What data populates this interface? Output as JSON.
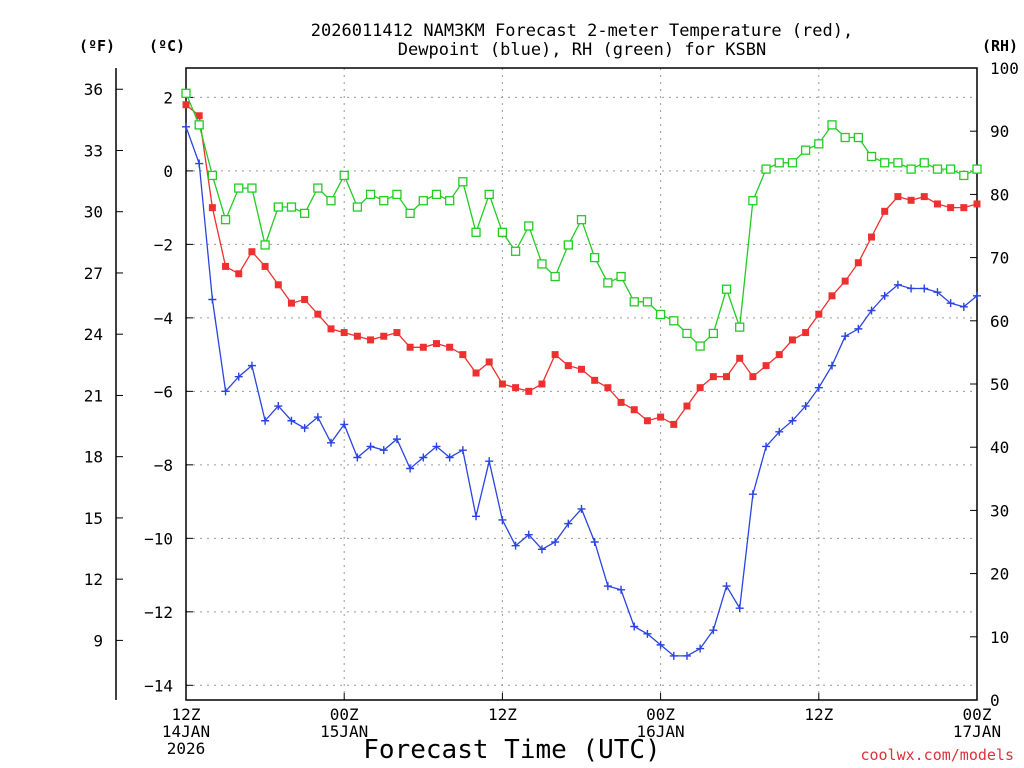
{
  "chart_data": {
    "type": "line",
    "title_line1": "2026011412 NAM3KM Forecast 2-meter Temperature (red),",
    "title_line2": "Dewpoint (blue), RH (green) for KSBN",
    "xlabel": "Forecast Time (UTC)",
    "credit": "coolwx.com/models",
    "unit_f": "(ºF)",
    "unit_c": "(ºC)",
    "unit_rh": "(RH)",
    "x_hours": [
      0,
      1,
      2,
      3,
      4,
      5,
      6,
      7,
      8,
      9,
      10,
      11,
      12,
      13,
      14,
      15,
      16,
      17,
      18,
      19,
      20,
      21,
      22,
      23,
      24,
      25,
      26,
      27,
      28,
      29,
      30,
      31,
      32,
      33,
      34,
      35,
      36,
      37,
      38,
      39,
      40,
      41,
      42,
      43,
      44,
      45,
      46,
      47,
      48,
      49,
      50,
      51,
      52,
      53,
      54,
      55,
      56,
      57,
      58,
      59,
      60
    ],
    "xlim": [
      0,
      60
    ],
    "x_ticks": [
      {
        "hour": 0,
        "lines": [
          "12Z",
          "14JAN",
          "2026"
        ]
      },
      {
        "hour": 12,
        "lines": [
          "00Z",
          "15JAN"
        ]
      },
      {
        "hour": 24,
        "lines": [
          "12Z"
        ]
      },
      {
        "hour": 36,
        "lines": [
          "00Z",
          "16JAN"
        ]
      },
      {
        "hour": 48,
        "lines": [
          "12Z"
        ]
      },
      {
        "hour": 60,
        "lines": [
          "00Z",
          "17JAN"
        ]
      }
    ],
    "c_axis": {
      "ylim": [
        -14.4,
        2.8
      ],
      "ticks": [
        2,
        0,
        -2,
        -4,
        -6,
        -8,
        -10,
        -12,
        -14
      ]
    },
    "f_axis": {
      "ticks": [
        36,
        33,
        30,
        27,
        24,
        21,
        18,
        15,
        12,
        9
      ]
    },
    "rh_axis": {
      "ylim": [
        0,
        100
      ],
      "ticks": [
        100,
        90,
        80,
        70,
        60,
        50,
        40,
        30,
        20,
        10,
        0
      ]
    },
    "series": [
      {
        "name": "2-meter Temperature",
        "unit": "C",
        "axis": "c",
        "color": "#ee3030",
        "marker": "filled-square",
        "values": [
          1.8,
          1.5,
          -1.0,
          -2.6,
          -2.8,
          -2.2,
          -2.6,
          -3.1,
          -3.6,
          -3.5,
          -3.9,
          -4.3,
          -4.4,
          -4.5,
          -4.6,
          -4.5,
          -4.4,
          -4.8,
          -4.8,
          -4.7,
          -4.8,
          -5.0,
          -5.5,
          -5.2,
          -5.8,
          -5.9,
          -6.0,
          -5.8,
          -5.0,
          -5.3,
          -5.4,
          -5.7,
          -5.9,
          -6.3,
          -6.5,
          -6.8,
          -6.7,
          -6.9,
          -6.4,
          -5.9,
          -5.6,
          -5.6,
          -5.1,
          -5.6,
          -5.3,
          -5.0,
          -4.6,
          -4.4,
          -3.9,
          -3.4,
          -3.0,
          -2.5,
          -1.8,
          -1.1,
          -0.7,
          -0.8,
          -0.7,
          -0.9,
          -1.0,
          -1.0,
          -0.9
        ]
      },
      {
        "name": "Dewpoint",
        "unit": "C",
        "axis": "c",
        "color": "#2a44e0",
        "marker": "plus",
        "values": [
          1.2,
          0.2,
          -3.5,
          -6.0,
          -5.6,
          -5.3,
          -6.8,
          -6.4,
          -6.8,
          -7.0,
          -6.7,
          -7.4,
          -6.9,
          -7.8,
          -7.5,
          -7.6,
          -7.3,
          -8.1,
          -7.8,
          -7.5,
          -7.8,
          -7.6,
          -9.4,
          -7.9,
          -9.5,
          -10.2,
          -9.9,
          -10.3,
          -10.1,
          -9.6,
          -9.2,
          -10.1,
          -11.3,
          -11.4,
          -12.4,
          -12.6,
          -12.9,
          -13.2,
          -13.2,
          -13.0,
          -12.5,
          -11.3,
          -11.9,
          -8.8,
          -7.5,
          -7.1,
          -6.8,
          -6.4,
          -5.9,
          -5.3,
          -4.5,
          -4.3,
          -3.8,
          -3.4,
          -3.1,
          -3.2,
          -3.2,
          -3.3,
          -3.6,
          -3.7,
          -3.4
        ]
      },
      {
        "name": "RH",
        "unit": "%",
        "axis": "rh",
        "color": "#22cc22",
        "marker": "open-square",
        "values": [
          96,
          91,
          83,
          76,
          81,
          81,
          72,
          78,
          78,
          77,
          81,
          79,
          83,
          78,
          80,
          79,
          80,
          77,
          79,
          80,
          79,
          82,
          74,
          80,
          74,
          71,
          75,
          69,
          67,
          72,
          76,
          70,
          66,
          67,
          63,
          63,
          61,
          60,
          58,
          56,
          58,
          65,
          59,
          79,
          84,
          85,
          85,
          87,
          88,
          91,
          89,
          89,
          86,
          85,
          85,
          84,
          85,
          84,
          84,
          83,
          84
        ]
      }
    ]
  }
}
